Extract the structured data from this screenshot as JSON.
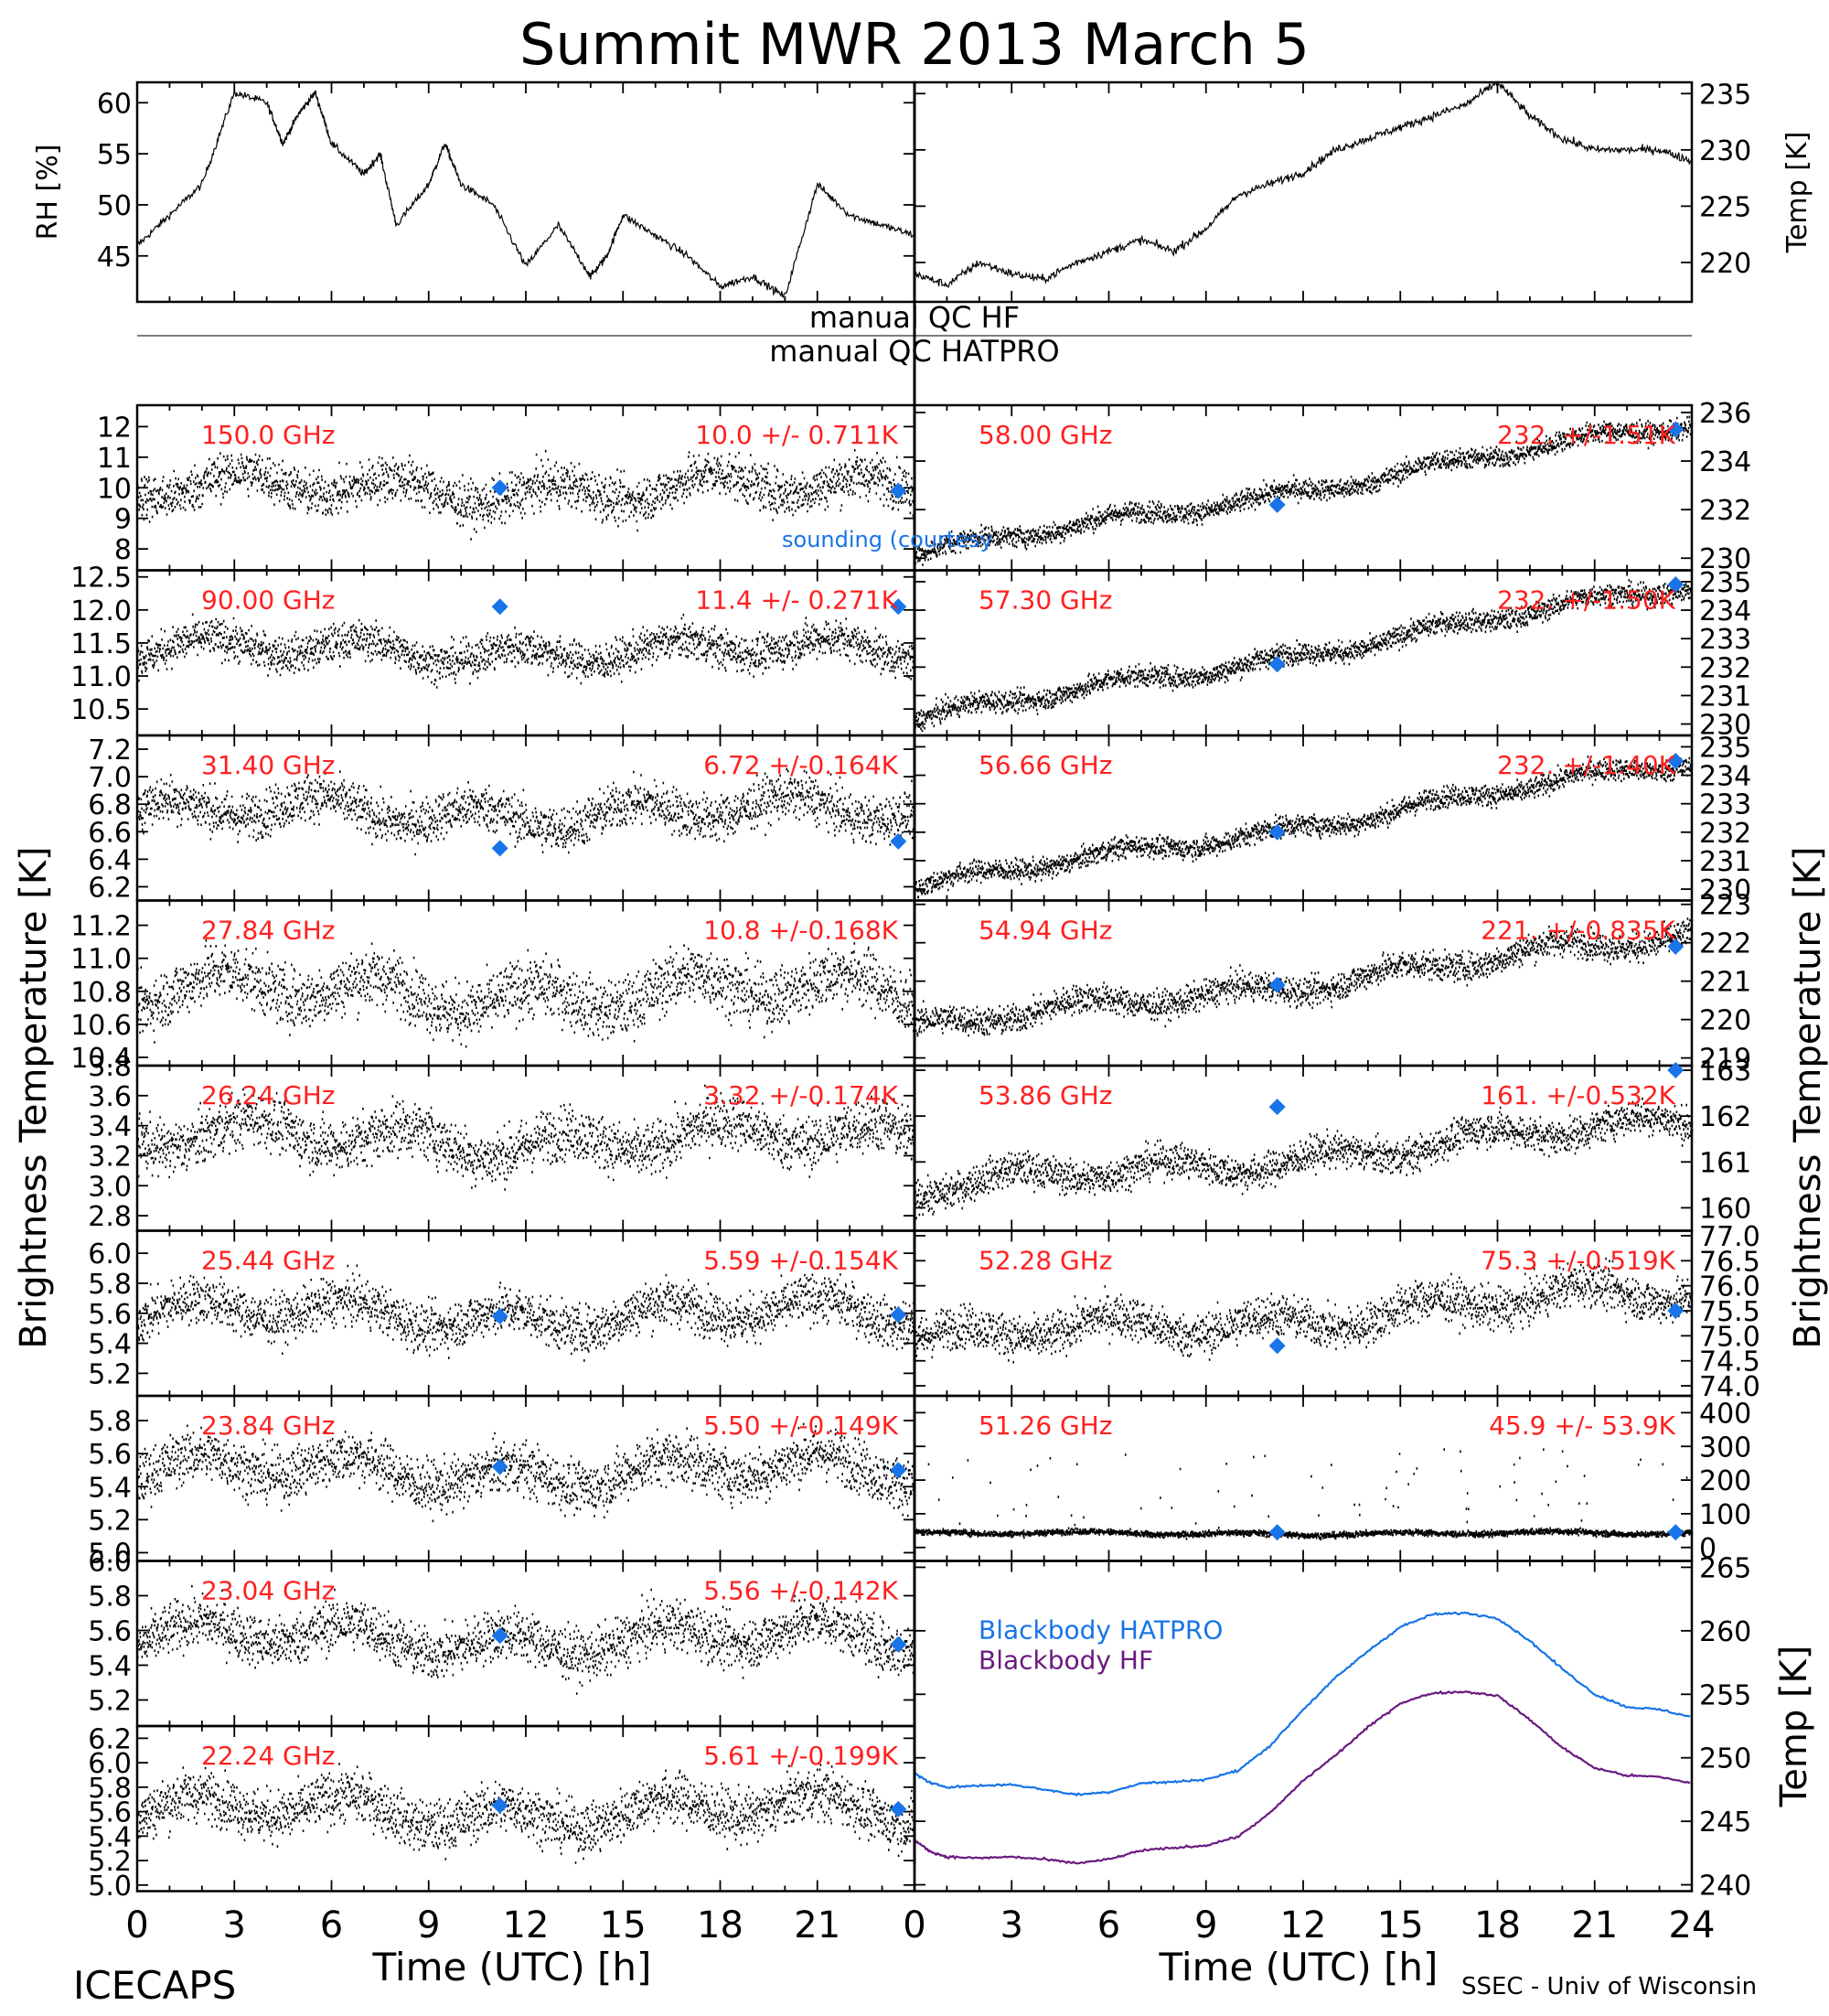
{
  "title": "Summit MWR 2013 March  5",
  "footer": {
    "left": "ICECAPS",
    "right": "SSEC - Univ of Wisconsin"
  },
  "xaxis": {
    "label": "Time (UTC) [h]",
    "ticks": [
      "0",
      "3",
      "6",
      "9",
      "12",
      "15",
      "18",
      "21",
      "24"
    ],
    "range": [
      0,
      24
    ]
  },
  "qc": {
    "hf": "manual QC HF",
    "hatpro": "manual QC HATPRO"
  },
  "colors": {
    "trace": "#000000",
    "freq_label": "#ff2020",
    "sounding": "#1874e8",
    "bb_hatpro": "#1874e8",
    "bb_hf": "#6a1a80"
  },
  "chart_data": [
    {
      "id": "rh",
      "type": "line",
      "ylabel": "RH [%]",
      "yticks": [
        "45",
        "50",
        "55",
        "60"
      ],
      "ylim": [
        40.5,
        62
      ],
      "x": [
        0,
        1,
        2,
        3,
        4,
        4.5,
        5,
        5.5,
        6,
        7,
        7.5,
        8,
        9,
        9.5,
        10,
        11,
        12,
        13,
        14,
        14.5,
        15,
        16,
        17,
        18,
        19,
        20,
        21,
        22,
        23,
        24
      ],
      "y": [
        46,
        49,
        52,
        61,
        60,
        56,
        59,
        61,
        56,
        53,
        55,
        48,
        52,
        56,
        52,
        50,
        44,
        48,
        43,
        45,
        49,
        47,
        45,
        42,
        43,
        41,
        52,
        49,
        48,
        47
      ]
    },
    {
      "id": "tair",
      "type": "line",
      "ylabel": "Temp [K]",
      "yticks": [
        "220",
        "225",
        "230",
        "235"
      ],
      "ylim": [
        216.5,
        236
      ],
      "x": [
        0,
        1,
        2,
        3,
        4,
        5,
        6,
        7,
        8,
        9,
        10,
        11,
        12,
        13,
        14,
        15,
        16,
        17,
        18,
        19,
        20,
        21,
        22,
        23,
        24
      ],
      "y": [
        219,
        218,
        220,
        219,
        218.5,
        220,
        221,
        222,
        221,
        223,
        226,
        227,
        228,
        230,
        231,
        232,
        233,
        234,
        236,
        233,
        231,
        230,
        230,
        230,
        229
      ]
    },
    {
      "id": "bt150",
      "type": "scatter",
      "side": "left",
      "freq_label": "150.0 GHz",
      "stat_label": "10.0 +/- 0.711K",
      "yticks": [
        "8",
        "9",
        "10",
        "11",
        "12"
      ],
      "ylim": [
        7.3,
        12.7
      ],
      "mean": 10.0,
      "spread": 0.71,
      "trend": [],
      "sounding": [
        [
          11.2,
          10.0
        ],
        [
          23.5,
          9.9
        ]
      ]
    },
    {
      "id": "bt90",
      "type": "scatter",
      "side": "left",
      "freq_label": "90.00 GHz",
      "stat_label": "11.4 +/- 0.271K",
      "yticks": [
        "10.5",
        "11.0",
        "11.5",
        "12.0",
        "12.5"
      ],
      "ylim": [
        10.1,
        12.6
      ],
      "mean": 11.4,
      "spread": 0.27,
      "trend": [],
      "sounding": [
        [
          11.2,
          12.05
        ],
        [
          23.5,
          12.05
        ]
      ]
    },
    {
      "id": "bt3140",
      "type": "scatter",
      "side": "left",
      "freq_label": "31.40 GHz",
      "stat_label": "6.72 +/-0.164K",
      "yticks": [
        "6.2",
        "6.4",
        "6.6",
        "6.8",
        "7.0",
        "7.2"
      ],
      "ylim": [
        6.1,
        7.3
      ],
      "mean": 6.75,
      "spread": 0.16,
      "trend": [],
      "sounding": [
        [
          11.2,
          6.48
        ],
        [
          23.5,
          6.53
        ]
      ]
    },
    {
      "id": "bt2784",
      "type": "scatter",
      "side": "left",
      "freq_label": "27.84 GHz",
      "stat_label": "10.8 +/-0.168K",
      "yticks": [
        "10.4",
        "10.6",
        "10.8",
        "11.0",
        "11.2"
      ],
      "ylim": [
        10.35,
        11.35
      ],
      "mean": 10.8,
      "spread": 0.17,
      "trend": [],
      "sounding": []
    },
    {
      "id": "bt2624",
      "type": "scatter",
      "side": "left",
      "freq_label": "26.24 GHz",
      "stat_label": "3.32 +/-0.174K",
      "yticks": [
        "2.8",
        "3.0",
        "3.2",
        "3.4",
        "3.6",
        "3.8"
      ],
      "ylim": [
        2.7,
        3.8
      ],
      "mean": 3.32,
      "spread": 0.17,
      "trend": [],
      "sounding": []
    },
    {
      "id": "bt2544",
      "type": "scatter",
      "side": "left",
      "freq_label": "25.44 GHz",
      "stat_label": "5.59 +/-0.154K",
      "yticks": [
        "5.2",
        "5.4",
        "5.6",
        "5.8",
        "6.0"
      ],
      "ylim": [
        5.05,
        6.15
      ],
      "mean": 5.6,
      "spread": 0.15,
      "trend": [],
      "sounding": [
        [
          11.2,
          5.58
        ],
        [
          23.5,
          5.59
        ]
      ]
    },
    {
      "id": "bt2384",
      "type": "scatter",
      "side": "left",
      "freq_label": "23.84 GHz",
      "stat_label": "5.50 +/-0.149K",
      "yticks": [
        "5.0",
        "5.2",
        "5.4",
        "5.6",
        "5.8"
      ],
      "ylim": [
        4.95,
        5.95
      ],
      "mean": 5.5,
      "spread": 0.15,
      "trend": [],
      "sounding": [
        [
          11.2,
          5.52
        ],
        [
          23.5,
          5.5
        ]
      ]
    },
    {
      "id": "bt2304",
      "type": "scatter",
      "side": "left",
      "freq_label": "23.04 GHz",
      "stat_label": "5.56 +/-0.142K",
      "yticks": [
        "5.2",
        "5.4",
        "5.6",
        "5.8",
        "6.0"
      ],
      "ylim": [
        5.05,
        6.0
      ],
      "mean": 5.56,
      "spread": 0.14,
      "trend": [],
      "sounding": [
        [
          11.2,
          5.57
        ],
        [
          23.5,
          5.52
        ]
      ]
    },
    {
      "id": "bt2224",
      "type": "scatter",
      "side": "left",
      "freq_label": "22.24 GHz",
      "stat_label": "5.61 +/-0.199K",
      "yticks": [
        "5.0",
        "5.2",
        "5.4",
        "5.6",
        "5.8",
        "6.0",
        "6.2"
      ],
      "ylim": [
        4.95,
        6.3
      ],
      "mean": 5.61,
      "spread": 0.2,
      "trend": [],
      "sounding": [
        [
          11.2,
          5.65
        ],
        [
          23.5,
          5.62
        ]
      ]
    },
    {
      "id": "bt5800",
      "type": "scatter",
      "side": "right",
      "freq_label": "58.00 GHz",
      "stat_label": "232. +/-1.51K",
      "yticks": [
        "230",
        "232",
        "234",
        "236"
      ],
      "ylim": [
        229.5,
        236.3
      ],
      "mean": 232,
      "spread": 0.4,
      "trend": [
        [
          0,
          230.2
        ],
        [
          24,
          235.6
        ]
      ],
      "sounding": [
        [
          11.2,
          232.2
        ],
        [
          23.5,
          235.3
        ]
      ]
    },
    {
      "id": "bt5730",
      "type": "scatter",
      "side": "right",
      "freq_label": "57.30 GHz",
      "stat_label": "232. +/-1.50K",
      "yticks": [
        "230",
        "231",
        "232",
        "233",
        "234",
        "235"
      ],
      "ylim": [
        229.6,
        235.4
      ],
      "mean": 232,
      "spread": 0.35,
      "trend": [
        [
          0,
          230.2
        ],
        [
          24,
          234.9
        ]
      ],
      "sounding": [
        [
          11.2,
          232.1
        ],
        [
          23.5,
          234.9
        ]
      ]
    },
    {
      "id": "bt5666",
      "type": "scatter",
      "side": "right",
      "freq_label": "56.66 GHz",
      "stat_label": "232. +/-1.40K",
      "yticks": [
        "230",
        "231",
        "232",
        "233",
        "234",
        "235"
      ],
      "ylim": [
        229.6,
        235.4
      ],
      "mean": 232,
      "spread": 0.35,
      "trend": [
        [
          0,
          230.1
        ],
        [
          24,
          234.5
        ]
      ],
      "sounding": [
        [
          11.2,
          232.0
        ],
        [
          23.5,
          234.5
        ]
      ]
    },
    {
      "id": "bt5494",
      "type": "scatter",
      "side": "right",
      "freq_label": "54.94 GHz",
      "stat_label": "221. +/-0.835K",
      "yticks": [
        "219",
        "220",
        "221",
        "222",
        "223"
      ],
      "ylim": [
        218.8,
        223.1
      ],
      "mean": 221,
      "spread": 0.35,
      "trend": [
        [
          0,
          219.8
        ],
        [
          24,
          222.2
        ]
      ],
      "sounding": [
        [
          11.2,
          220.9
        ],
        [
          23.5,
          221.9
        ]
      ]
    },
    {
      "id": "bt5386",
      "type": "scatter",
      "side": "right",
      "freq_label": "53.86 GHz",
      "stat_label": "161. +/-0.532K",
      "yticks": [
        "160",
        "161",
        "162",
        "163"
      ],
      "ylim": [
        159.5,
        163.1
      ],
      "mean": 161,
      "spread": 0.35,
      "trend": [
        [
          0,
          160.4
        ],
        [
          24,
          161.9
        ]
      ],
      "sounding": [
        [
          11.2,
          162.2
        ],
        [
          23.5,
          163.0
        ]
      ]
    },
    {
      "id": "bt5228",
      "type": "scatter",
      "side": "right",
      "freq_label": "52.28 GHz",
      "stat_label": "75.3 +/-0.519K",
      "yticks": [
        "74.0",
        "74.5",
        "75.0",
        "75.5",
        "76.0",
        "76.5",
        "77.0"
      ],
      "ylim": [
        73.8,
        77.1
      ],
      "mean": 75.3,
      "spread": 0.4,
      "trend": [
        [
          0,
          74.9
        ],
        [
          24,
          75.9
        ]
      ],
      "sounding": [
        [
          11.2,
          74.8
        ],
        [
          23.5,
          75.5
        ]
      ]
    },
    {
      "id": "bt5126",
      "type": "scatter",
      "side": "right",
      "freq_label": "51.26 GHz",
      "stat_label": "45.9 +/- 53.9K",
      "yticks": [
        "0",
        "100",
        "200",
        "300",
        "400"
      ],
      "ylim": [
        -40,
        450
      ],
      "mean": 45,
      "spread": 8,
      "trend": [],
      "sounding": [
        [
          11.2,
          45
        ],
        [
          23.5,
          45
        ]
      ]
    },
    {
      "id": "blackbody",
      "type": "line",
      "ylabel": "Temp [K]",
      "yticks": [
        "240",
        "245",
        "250",
        "255",
        "260",
        "265"
      ],
      "ylim": [
        239.5,
        265.5
      ],
      "series": [
        {
          "name": "Blackbody HATPRO",
          "color": "#1874e8",
          "x": [
            0,
            0.5,
            1,
            2,
            3,
            4,
            5,
            6,
            7,
            8,
            9,
            10,
            11,
            12,
            13,
            14,
            15,
            16,
            17,
            18,
            19,
            20,
            21,
            22,
            23,
            24
          ],
          "y": [
            248.8,
            248,
            247.7,
            247.8,
            247.9,
            247.5,
            247.1,
            247.3,
            248,
            248.1,
            248.3,
            249,
            251,
            253.8,
            256.3,
            258.4,
            260.3,
            261.3,
            261.4,
            261,
            259.2,
            257,
            255,
            254,
            253.8,
            253.2
          ]
        },
        {
          "name": "Blackbody HF",
          "color": "#6a1a80",
          "x": [
            0,
            0.5,
            1,
            2,
            3,
            4,
            5,
            6,
            7,
            8,
            9,
            10,
            11,
            12,
            13,
            14,
            15,
            16,
            17,
            18,
            19,
            20,
            21,
            22,
            23,
            24
          ],
          "y": [
            243.5,
            242.6,
            242.2,
            242.1,
            242.2,
            242.0,
            241.7,
            242,
            242.7,
            242.9,
            243.1,
            243.8,
            245.7,
            248.2,
            250.2,
            252.4,
            254.3,
            255.1,
            255.2,
            254.9,
            253,
            250.8,
            249.2,
            248.6,
            248.5,
            248
          ]
        }
      ]
    }
  ],
  "left_axis_label": "Brightness Temperature [K]",
  "right_axis_label": "Brightness Temperature [K]",
  "sounding_note": "sounding (courtesy"
}
